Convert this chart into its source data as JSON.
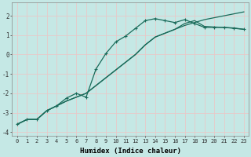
{
  "xlabel": "Humidex (Indice chaleur)",
  "bg_color": "#c5e8e5",
  "grid_color": "#e8c8c8",
  "line_color": "#1a6b5a",
  "xlim": [
    -0.5,
    23.5
  ],
  "ylim": [
    -4.2,
    2.7
  ],
  "yticks": [
    -4,
    -3,
    -2,
    -1,
    0,
    1,
    2
  ],
  "xticks": [
    0,
    1,
    2,
    3,
    4,
    5,
    6,
    7,
    8,
    9,
    10,
    11,
    12,
    13,
    14,
    15,
    16,
    17,
    18,
    19,
    20,
    21,
    22,
    23
  ],
  "series1_x": [
    0,
    1,
    2,
    3,
    4,
    5,
    6,
    7,
    8,
    9,
    10,
    11,
    12,
    13,
    14,
    15,
    16,
    17,
    18,
    19,
    20,
    21,
    22,
    23
  ],
  "series1_y": [
    -3.6,
    -3.35,
    -3.35,
    -2.9,
    -2.65,
    -2.25,
    -2.0,
    -2.2,
    -0.75,
    0.05,
    0.65,
    0.95,
    1.35,
    1.75,
    1.85,
    1.75,
    1.65,
    1.8,
    1.6,
    1.4,
    1.4,
    1.4,
    1.35,
    1.3
  ],
  "series2_x": [
    0,
    1,
    2,
    3,
    4,
    5,
    6,
    7,
    8,
    9,
    10,
    11,
    12,
    13,
    14,
    15,
    16,
    17,
    18,
    19,
    20,
    21,
    22,
    23
  ],
  "series2_y": [
    -3.6,
    -3.35,
    -3.35,
    -2.9,
    -2.65,
    -2.4,
    -2.2,
    -2.0,
    -1.6,
    -1.2,
    -0.8,
    -0.4,
    0.0,
    0.5,
    0.9,
    1.1,
    1.3,
    1.5,
    1.65,
    1.8,
    1.9,
    2.0,
    2.1,
    2.2
  ],
  "series3_x": [
    0,
    1,
    2,
    3,
    4,
    5,
    6,
    7,
    8,
    9,
    10,
    11,
    12,
    13,
    14,
    15,
    16,
    17,
    18,
    19,
    20,
    21,
    22,
    23
  ],
  "series3_y": [
    -3.6,
    -3.35,
    -3.35,
    -2.9,
    -2.65,
    -2.4,
    -2.2,
    -2.0,
    -1.6,
    -1.2,
    -0.8,
    -0.4,
    0.0,
    0.5,
    0.9,
    1.1,
    1.3,
    1.6,
    1.75,
    1.45,
    1.42,
    1.4,
    1.37,
    1.3
  ]
}
